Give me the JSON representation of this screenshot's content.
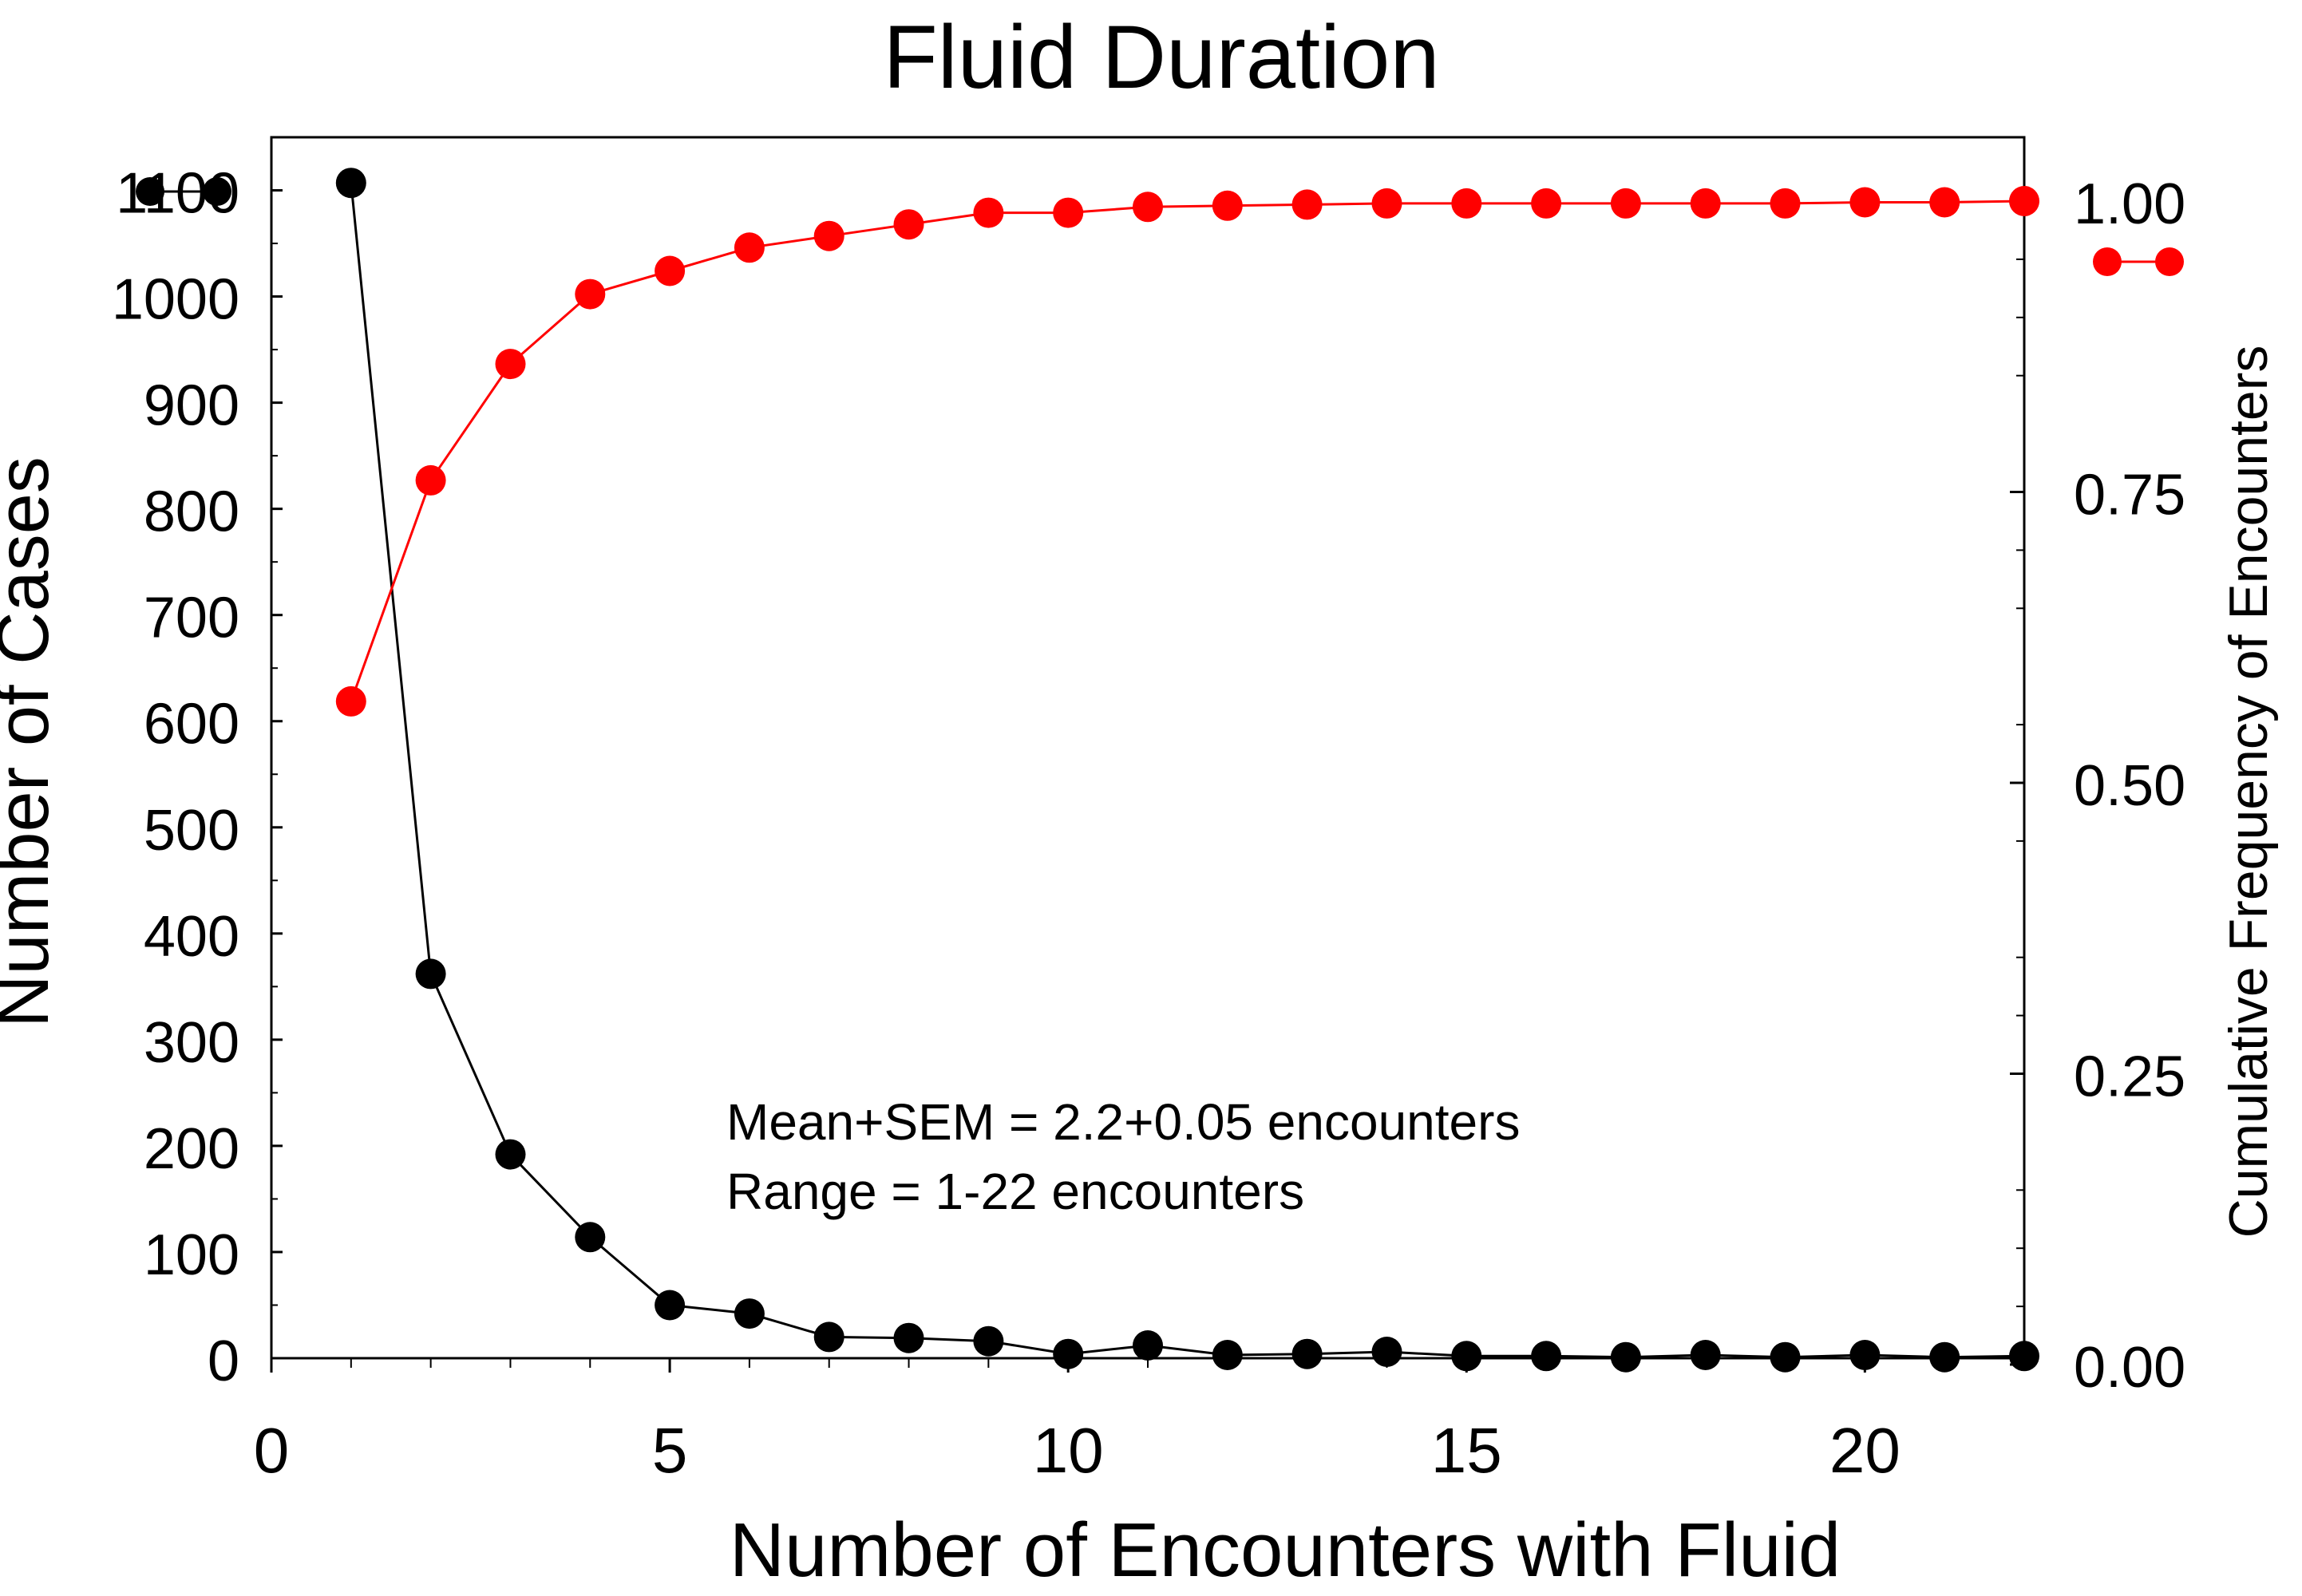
{
  "chart_data": {
    "type": "line",
    "title": "Fluid Duration",
    "xlabel": "Number of Encounters with Fluid",
    "ylabel_left": "Number of Cases",
    "ylabel_right": "Cumulative Frequency of Encounters",
    "xlim": [
      0,
      22
    ],
    "ylim_left": [
      0,
      1150
    ],
    "ylim_right": [
      0,
      1.0
    ],
    "x_ticks": [
      "0",
      "5",
      "10",
      "15",
      "20"
    ],
    "x_tick_values": [
      0,
      5,
      10,
      15,
      20
    ],
    "y_left_ticks": [
      "0",
      "100",
      "200",
      "300",
      "400",
      "500",
      "600",
      "700",
      "800",
      "900",
      "1000",
      "1100"
    ],
    "y_left_tick_values": [
      0,
      100,
      200,
      300,
      400,
      500,
      600,
      700,
      800,
      900,
      1000,
      1100
    ],
    "y_right_ticks": [
      "0.00",
      "0.25",
      "0.50",
      "0.75",
      "1.00"
    ],
    "y_right_tick_values": [
      0,
      0.25,
      0.5,
      0.75,
      1.0
    ],
    "grid": false,
    "annotations": [
      "Mean+SEM = 2.2+0.05 encounters",
      "Range = 1-22 encounters"
    ],
    "series": [
      {
        "axis": "left",
        "color": "#000000",
        "x": [
          1,
          2,
          3,
          4,
          5,
          6,
          7,
          8,
          9,
          10,
          11,
          12,
          13,
          14,
          15,
          16,
          17,
          18,
          19,
          20,
          21,
          22
        ],
        "values": [
          1107,
          362,
          192,
          114,
          50,
          42,
          20,
          19,
          16,
          4,
          12,
          3,
          4,
          6,
          2,
          2,
          1,
          3,
          1,
          3,
          1,
          2
        ]
      },
      {
        "axis": "right",
        "color": "#ff0000",
        "x": [
          1,
          2,
          3,
          4,
          5,
          6,
          7,
          8,
          9,
          10,
          11,
          12,
          13,
          14,
          15,
          16,
          17,
          18,
          19,
          20,
          21,
          22
        ],
        "values": [
          0.57,
          0.76,
          0.86,
          0.92,
          0.94,
          0.96,
          0.97,
          0.98,
          0.99,
          0.99,
          0.995,
          0.996,
          0.997,
          0.998,
          0.998,
          0.998,
          0.998,
          0.998,
          0.998,
          0.999,
          0.999,
          1.0
        ]
      }
    ]
  }
}
